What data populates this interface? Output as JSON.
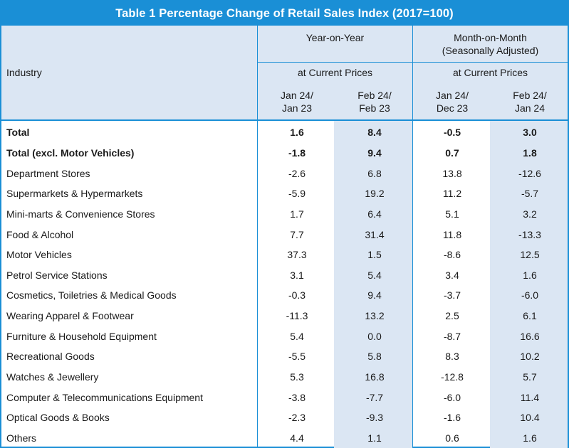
{
  "title": "Table 1 Percentage Change of Retail Sales Index (2017=100)",
  "header": {
    "industry": "Industry",
    "yoy": "Year-on-Year",
    "mom_line1": "Month-on-Month",
    "mom_line2": "(Seasonally Adjusted)",
    "current_prices_yoy": "at Current Prices",
    "current_prices_mom": "at Current Prices",
    "columns": [
      {
        "line1": "Jan 24/",
        "line2": "Jan 23"
      },
      {
        "line1": "Feb 24/",
        "line2": "Feb 23"
      },
      {
        "line1": "Jan 24/",
        "line2": "Dec 23"
      },
      {
        "line1": "Feb 24/",
        "line2": "Jan 24"
      }
    ]
  },
  "rows": [
    {
      "industry": "Total",
      "values": [
        "1.6",
        "8.4",
        "-0.5",
        "3.0"
      ]
    },
    {
      "industry": "Total (excl. Motor Vehicles)",
      "values": [
        "-1.8",
        "9.4",
        "0.7",
        "1.8"
      ]
    },
    {
      "industry": "Department Stores",
      "values": [
        "-2.6",
        "6.8",
        "13.8",
        "-12.6"
      ]
    },
    {
      "industry": "Supermarkets & Hypermarkets",
      "values": [
        "-5.9",
        "19.2",
        "11.2",
        "-5.7"
      ]
    },
    {
      "industry": "Mini-marts & Convenience Stores",
      "values": [
        "1.7",
        "6.4",
        "5.1",
        "3.2"
      ]
    },
    {
      "industry": "Food & Alcohol",
      "values": [
        "7.7",
        "31.4",
        "11.8",
        "-13.3"
      ]
    },
    {
      "industry": "Motor Vehicles",
      "values": [
        "37.3",
        "1.5",
        "-8.6",
        "12.5"
      ]
    },
    {
      "industry": "Petrol Service Stations",
      "values": [
        "3.1",
        "5.4",
        "3.4",
        "1.6"
      ]
    },
    {
      "industry": "Cosmetics, Toiletries & Medical Goods",
      "values": [
        "-0.3",
        "9.4",
        "-3.7",
        "-6.0"
      ]
    },
    {
      "industry": "Wearing Apparel & Footwear",
      "values": [
        "-11.3",
        "13.2",
        "2.5",
        "6.1"
      ]
    },
    {
      "industry": "Furniture & Household Equipment",
      "values": [
        "5.4",
        "0.0",
        "-8.7",
        "16.6"
      ]
    },
    {
      "industry": "Recreational Goods",
      "values": [
        "-5.5",
        "5.8",
        "8.3",
        "10.2"
      ]
    },
    {
      "industry": "Watches & Jewellery",
      "values": [
        "5.3",
        "16.8",
        "-12.8",
        "5.7"
      ]
    },
    {
      "industry": "Computer & Telecommunications Equipment",
      "values": [
        "-3.8",
        "-7.7",
        "-6.0",
        "11.4"
      ]
    },
    {
      "industry": "Optical Goods & Books",
      "values": [
        "-2.3",
        "-9.3",
        "-1.6",
        "10.4"
      ]
    },
    {
      "industry": "Others",
      "values": [
        "4.4",
        "1.1",
        "0.6",
        "1.6"
      ]
    }
  ],
  "bold_rows": [
    0,
    1
  ],
  "colors": {
    "accent": "#1a8fd6",
    "shade": "#dbe6f3"
  }
}
